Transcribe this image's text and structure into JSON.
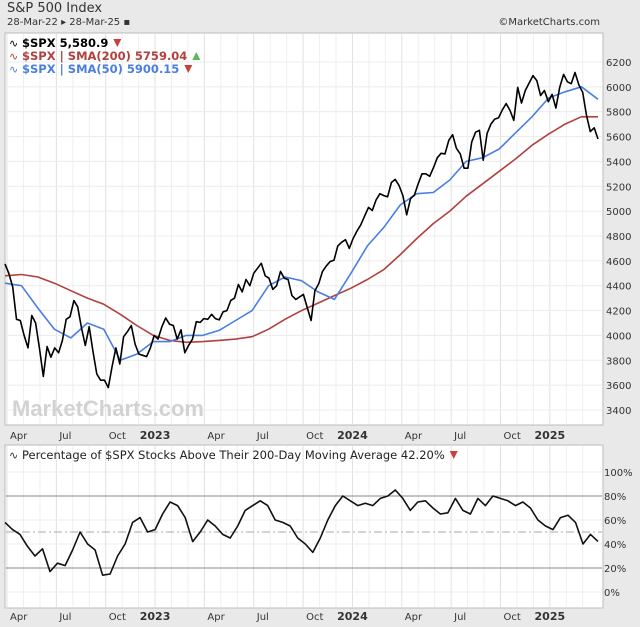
{
  "header": {
    "title": "S&P 500 Index",
    "date_range": "28-Mar-22 ▸ 28-Mar-25 ▪",
    "copyright": "©MarketCharts.com"
  },
  "watermark": "MarketCharts.com",
  "colors": {
    "price": "#000000",
    "sma200": "#b0413e",
    "sma50": "#4a7fe0",
    "up": "#5cb85c",
    "down": "#c9403b"
  },
  "chart_data": [
    {
      "type": "line",
      "x_start": "28-Mar-22",
      "x_end": "28-Mar-25",
      "grid": true,
      "legend": "top-left",
      "x_ticks": [
        "Apr",
        "Jul",
        "Oct",
        "2023",
        "Apr",
        "Jul",
        "Oct",
        "2024",
        "Apr",
        "Jul",
        "Oct",
        "2025"
      ],
      "y_ticks": [
        "6200",
        "6000",
        "5800",
        "5600",
        "5400",
        "5200",
        "5000",
        "4800",
        "4600",
        "4400",
        "4200",
        "4000",
        "3800",
        "3600",
        "3400"
      ],
      "ylim": [
        3400,
        6200
      ],
      "series": [
        {
          "name": "$SPX",
          "legend": "$SPX 5,580.9",
          "direction": "down",
          "values": [
            4575,
            4500,
            4390,
            4130,
            4120,
            4000,
            3900,
            4160,
            4100,
            3900,
            3670,
            3910,
            3825,
            3900,
            3860,
            3960,
            4130,
            4150,
            4280,
            4230,
            4060,
            3920,
            4070,
            3870,
            3690,
            3640,
            3640,
            3580,
            3750,
            3900,
            3770,
            3990,
            4030,
            4080,
            3930,
            3850,
            3840,
            3830,
            3900,
            4000,
            3970,
            4070,
            4140,
            4090,
            4080,
            3970,
            4045,
            3860,
            3920,
            3970,
            4110,
            4105,
            4135,
            4130,
            4170,
            4135,
            4125,
            4190,
            4200,
            4280,
            4300,
            4410,
            4350,
            4450,
            4400,
            4500,
            4540,
            4580,
            4480,
            4460,
            4370,
            4400,
            4515,
            4460,
            4450,
            4320,
            4290,
            4310,
            4330,
            4225,
            4120,
            4360,
            4415,
            4515,
            4560,
            4595,
            4605,
            4720,
            4750,
            4770,
            4700,
            4780,
            4840,
            4890,
            4960,
            5030,
            5005,
            5090,
            5140,
            5125,
            5115,
            5230,
            5255,
            5205,
            5125,
            4970,
            5100,
            5130,
            5220,
            5300,
            5300,
            5280,
            5350,
            5430,
            5465,
            5460,
            5570,
            5615,
            5505,
            5460,
            5345,
            5345,
            5555,
            5635,
            5650,
            5410,
            5625,
            5700,
            5740,
            5750,
            5815,
            5865,
            5810,
            5730,
            5995,
            5870,
            5970,
            6030,
            6090,
            6050,
            5930,
            5970,
            5880,
            5940,
            5830,
            5995,
            6100,
            6040,
            6025,
            6115,
            6015,
            5955,
            5770,
            5640,
            5670,
            5580
          ]
        },
        {
          "name": "$SPX | SMA(200)",
          "legend": "$SPX | SMA(200) 5759.04",
          "direction": "up",
          "values": [
            4480,
            4490,
            4470,
            4420,
            4360,
            4300,
            4250,
            4170,
            4080,
            4000,
            3960,
            3945,
            3950,
            3960,
            3970,
            3990,
            4050,
            4130,
            4200,
            4260,
            4320,
            4380,
            4450,
            4530,
            4650,
            4780,
            4900,
            5000,
            5120,
            5220,
            5320,
            5420,
            5530,
            5620,
            5700,
            5760,
            5759
          ]
        },
        {
          "name": "$SPX | SMA(50)",
          "legend": "$SPX | SMA(50) 5900.15",
          "direction": "down",
          "values": [
            4420,
            4400,
            4220,
            4050,
            3980,
            4100,
            4050,
            3800,
            3850,
            3950,
            3950,
            4000,
            4000,
            4040,
            4120,
            4200,
            4400,
            4470,
            4440,
            4350,
            4290,
            4500,
            4720,
            4870,
            5050,
            5140,
            5150,
            5250,
            5400,
            5430,
            5500,
            5630,
            5760,
            5910,
            5960,
            6000,
            5900
          ]
        }
      ]
    },
    {
      "type": "line",
      "x_start": "28-Mar-22",
      "x_end": "28-Mar-25",
      "grid": true,
      "x_ticks": [
        "Apr",
        "Jul",
        "Oct",
        "2023",
        "Apr",
        "Jul",
        "Oct",
        "2024",
        "Apr",
        "Jul",
        "Oct",
        "2025"
      ],
      "y_ticks": [
        "100%",
        "80%",
        "60%",
        "40%",
        "20%",
        "0%"
      ],
      "ylim": [
        -10,
        115
      ],
      "reference_lines": [
        80,
        50,
        20
      ],
      "series": [
        {
          "name": "Percentage of $SPX Stocks Above Their 200-Day Moving Average",
          "legend": "Percentage of $SPX Stocks Above Their 200-Day Moving Average 42.20%",
          "direction": "down",
          "values": [
            58,
            52,
            48,
            38,
            30,
            36,
            17,
            24,
            22,
            35,
            50,
            40,
            35,
            14,
            15,
            30,
            40,
            58,
            62,
            50,
            52,
            65,
            75,
            72,
            62,
            42,
            50,
            60,
            55,
            48,
            45,
            55,
            68,
            72,
            76,
            72,
            60,
            58,
            55,
            45,
            40,
            33,
            45,
            60,
            72,
            80,
            76,
            72,
            74,
            72,
            78,
            80,
            85,
            78,
            68,
            75,
            76,
            70,
            65,
            66,
            78,
            68,
            65,
            78,
            72,
            80,
            78,
            76,
            72,
            75,
            70,
            60,
            55,
            52,
            62,
            64,
            58,
            40,
            48,
            42.2
          ]
        }
      ]
    }
  ]
}
